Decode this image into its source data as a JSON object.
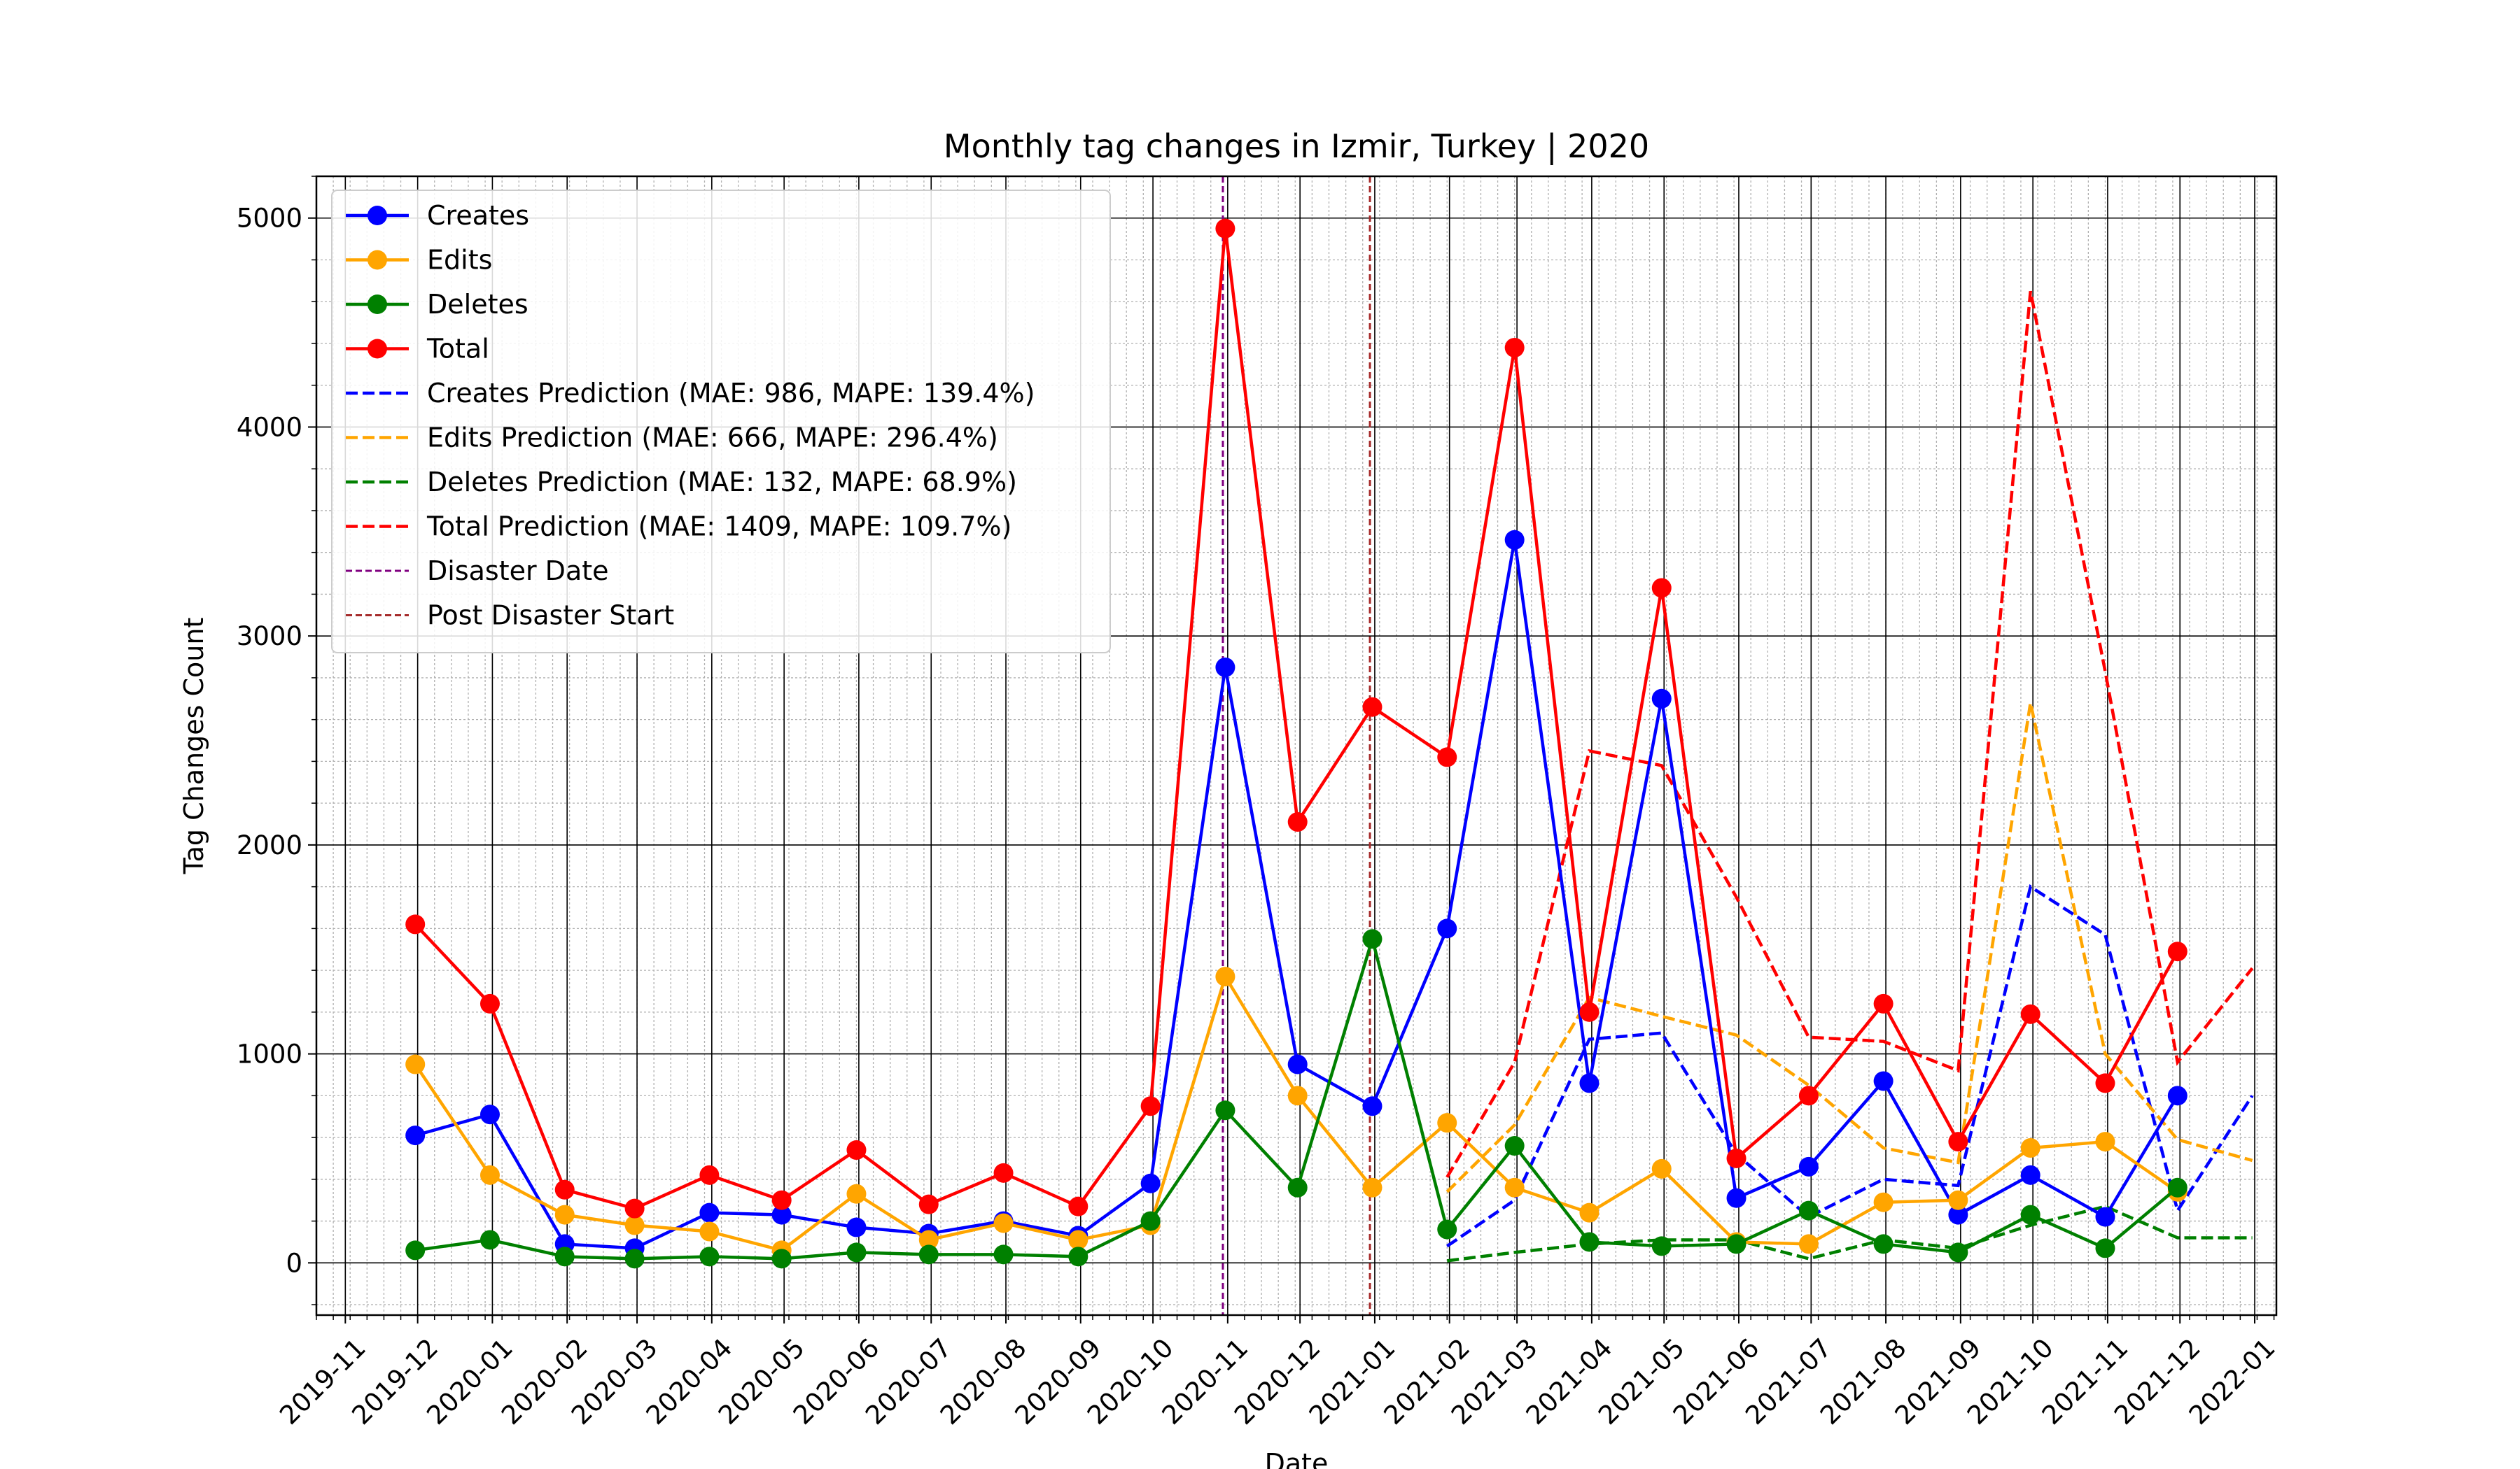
{
  "chart_data": {
    "type": "line",
    "title": "Monthly tag changes in Izmir, Turkey | 2020",
    "xlabel": "Date",
    "ylabel": "Tag Changes Count",
    "xlim": [
      "2019-10-20",
      "2022-01-10"
    ],
    "ylim": [
      -250,
      5200
    ],
    "grid": true,
    "legend_position": "upper-left",
    "x_ticks": [
      "2019-11",
      "2019-12",
      "2020-01",
      "2020-02",
      "2020-03",
      "2020-04",
      "2020-05",
      "2020-06",
      "2020-07",
      "2020-08",
      "2020-09",
      "2020-10",
      "2020-11",
      "2020-12",
      "2021-01",
      "2021-02",
      "2021-03",
      "2021-04",
      "2021-05",
      "2021-06",
      "2021-07",
      "2021-08",
      "2021-09",
      "2021-10",
      "2021-11",
      "2021-12",
      "2022-01"
    ],
    "y_ticks": [
      0,
      1000,
      2000,
      3000,
      4000,
      5000
    ],
    "x": [
      "2019-11-30",
      "2019-12-31",
      "2020-01-31",
      "2020-02-29",
      "2020-03-31",
      "2020-04-30",
      "2020-05-31",
      "2020-06-30",
      "2020-07-31",
      "2020-08-31",
      "2020-09-30",
      "2020-10-31",
      "2020-11-30",
      "2020-12-31",
      "2021-01-31",
      "2021-02-28",
      "2021-03-31",
      "2021-04-30",
      "2021-05-31",
      "2021-06-30",
      "2021-07-31",
      "2021-08-31",
      "2021-09-30",
      "2021-10-31",
      "2021-11-30"
    ],
    "series": [
      {
        "name": "Creates",
        "color": "#0000ff",
        "style": "solid-marker",
        "values": [
          610,
          710,
          90,
          70,
          240,
          230,
          170,
          140,
          200,
          130,
          380,
          2850,
          950,
          750,
          1600,
          3460,
          860,
          2700,
          310,
          460,
          870,
          230,
          420,
          220,
          800
        ]
      },
      {
        "name": "Edits",
        "color": "#ffa500",
        "style": "solid-marker",
        "values": [
          950,
          420,
          230,
          180,
          150,
          60,
          330,
          110,
          190,
          110,
          180,
          1370,
          800,
          360,
          670,
          360,
          240,
          450,
          100,
          90,
          290,
          300,
          550,
          580,
          340
        ]
      },
      {
        "name": "Deletes",
        "color": "#008000",
        "style": "solid-marker",
        "values": [
          60,
          110,
          30,
          20,
          30,
          20,
          50,
          40,
          40,
          30,
          200,
          730,
          360,
          1550,
          160,
          560,
          100,
          80,
          90,
          250,
          90,
          50,
          230,
          70,
          360
        ]
      },
      {
        "name": "Total",
        "color": "#ff0000",
        "style": "solid-marker",
        "values": [
          1620,
          1240,
          350,
          260,
          420,
          300,
          540,
          280,
          430,
          270,
          750,
          4950,
          2110,
          2660,
          2420,
          4380,
          1200,
          3230,
          500,
          800,
          1240,
          580,
          1190,
          860,
          1490
        ]
      }
    ],
    "prediction_x": [
      "2021-01-31",
      "2021-02-28",
      "2021-03-31",
      "2021-04-30",
      "2021-05-31",
      "2021-06-30",
      "2021-07-31",
      "2021-08-31",
      "2021-09-30",
      "2021-10-31",
      "2021-11-30",
      "2021-12-31"
    ],
    "prediction_series": [
      {
        "name": "Creates Prediction (MAE: 986, MAPE: 139.4%)",
        "color": "#0000ff",
        "style": "dashed",
        "values": [
          80,
          300,
          1070,
          1100,
          520,
          220,
          400,
          370,
          1800,
          1570,
          250,
          800
        ]
      },
      {
        "name": "Edits Prediction (MAE: 666, MAPE: 296.4%)",
        "color": "#ffa500",
        "style": "dashed",
        "values": [
          340,
          660,
          1270,
          1180,
          1090,
          850,
          550,
          480,
          2680,
          1000,
          590,
          490
        ]
      },
      {
        "name": "Deletes Prediction (MAE: 132, MAPE: 68.9%)",
        "color": "#008000",
        "style": "dashed",
        "values": [
          10,
          50,
          90,
          110,
          110,
          20,
          110,
          70,
          180,
          270,
          120,
          120
        ]
      },
      {
        "name": "Total Prediction (MAE: 1409, MAPE: 109.7%)",
        "color": "#ff0000",
        "style": "dashed",
        "values": [
          410,
          960,
          2450,
          2380,
          1750,
          1080,
          1060,
          920,
          4650,
          2830,
          960,
          1410
        ]
      }
    ],
    "vlines": [
      {
        "name": "Disaster Date",
        "date": "2020-10-30",
        "color": "#800080"
      },
      {
        "name": "Post Disaster Start",
        "date": "2020-12-30",
        "color": "#a52a2a"
      }
    ]
  }
}
